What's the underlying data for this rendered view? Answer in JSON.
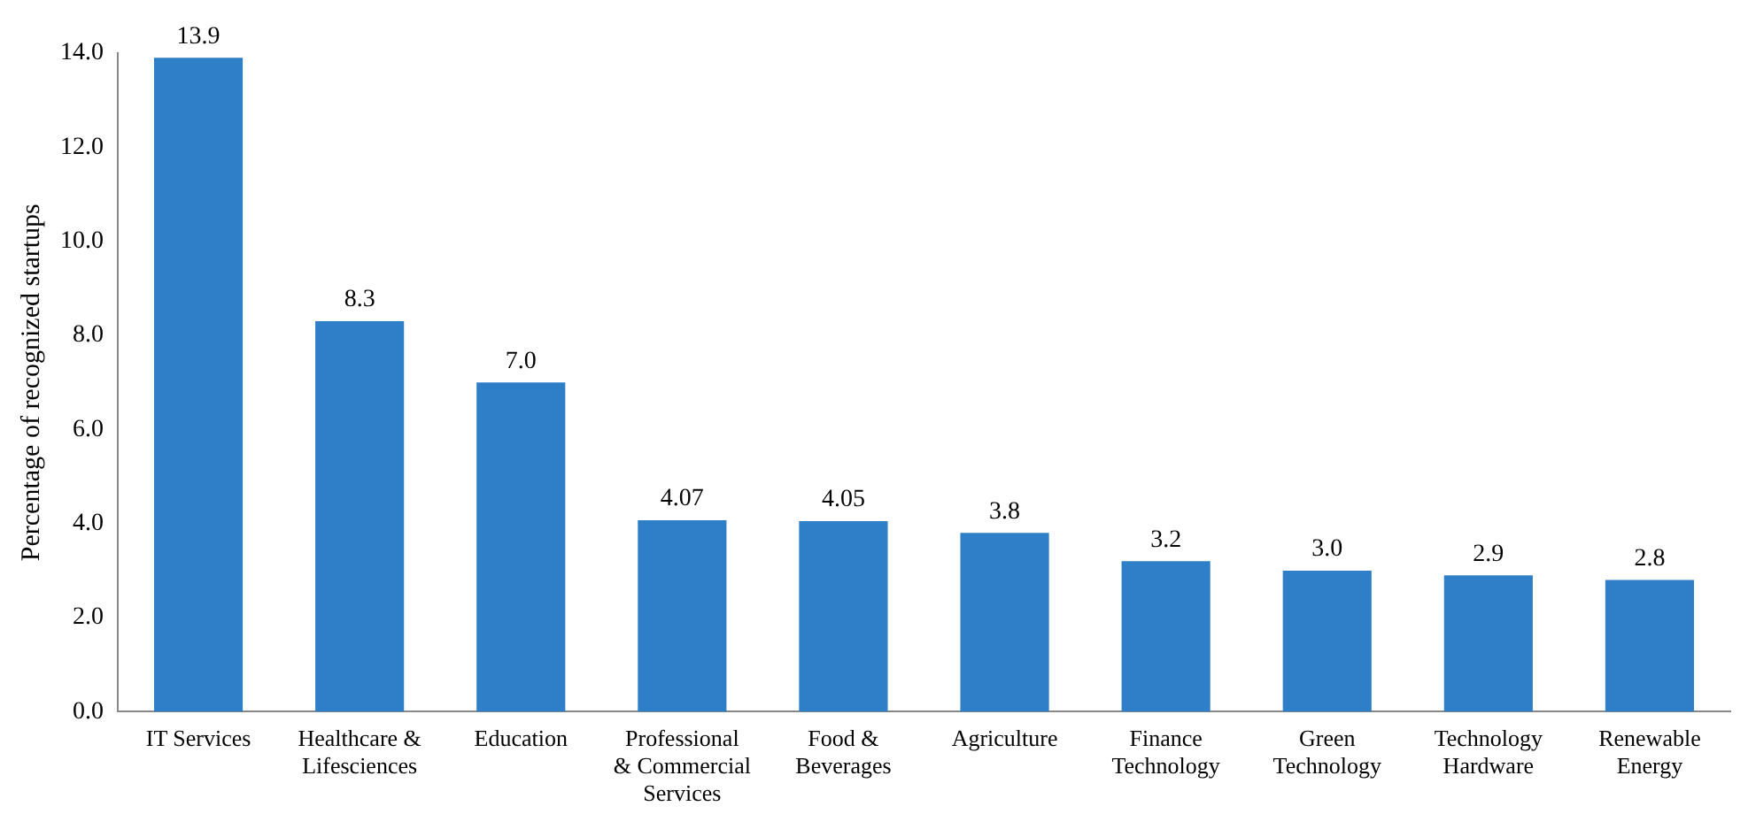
{
  "chart_data": {
    "type": "bar",
    "ylabel": "Percentage of recognized startups",
    "categories": [
      "IT Services",
      "Healthcare & Lifesciences",
      "Education",
      "Professional & Commercial Services",
      "Food & Beverages",
      "Agriculture",
      "Finance Technology",
      "Green Technology",
      "Technology Hardware",
      "Renewable Energy"
    ],
    "values": [
      13.9,
      8.3,
      7.0,
      4.07,
      4.05,
      3.8,
      3.2,
      3.0,
      2.9,
      2.8
    ],
    "value_labels": [
      "13.9",
      "8.3",
      "7.0",
      "4.07",
      "4.05",
      "3.8",
      "3.2",
      "3.0",
      "2.9",
      "2.8"
    ],
    "color": "#2f7fc8",
    "ylim": [
      0,
      14
    ],
    "yticks": [
      {
        "value": 0,
        "label": "0.0"
      },
      {
        "value": 2,
        "label": "2.0"
      },
      {
        "value": 4,
        "label": "4.0"
      },
      {
        "value": 6,
        "label": "6.0"
      },
      {
        "value": 8,
        "label": "8.0"
      },
      {
        "value": 10,
        "label": "10.0"
      },
      {
        "value": 12,
        "label": "12.0"
      },
      {
        "value": 14,
        "label": "14.0"
      }
    ],
    "grid": false,
    "legend": false
  }
}
